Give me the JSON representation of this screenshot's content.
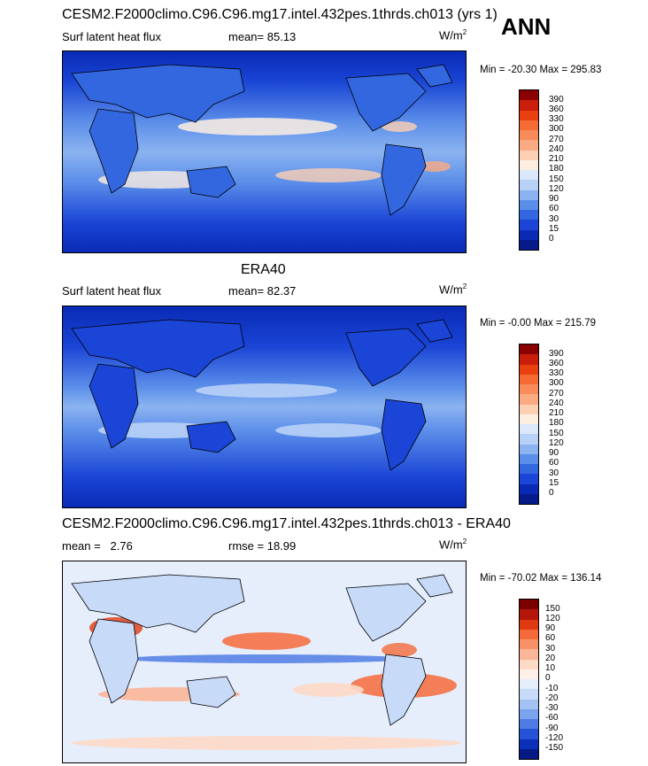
{
  "season": "ANN",
  "panels": [
    {
      "title": "CESM2.F2000climo.C96.C96.mg17.intel.432pes.1thrds.ch013 (yrs 1)",
      "left_label": "Surf latent heat flux",
      "stat_label": "mean=",
      "stat_value": "85.13",
      "units_base": "W/m",
      "units_exp": "2",
      "min_max": "Min = -20.30 Max = 295.83",
      "colorbar_ticks": [
        "390",
        "360",
        "330",
        "300",
        "270",
        "240",
        "210",
        "180",
        "150",
        "120",
        "90",
        "60",
        "30",
        "15",
        "0"
      ],
      "colorbar_colors": [
        "#8b0000",
        "#c81e0a",
        "#e8400f",
        "#f66a33",
        "#f98a5a",
        "#fbab82",
        "#fdd0b4",
        "#fdeee2",
        "#dbe8fb",
        "#b8d1f7",
        "#8bb3f1",
        "#5b8ee9",
        "#3267e0",
        "#1a45d6",
        "#0a2ab5",
        "#071a8a"
      ]
    },
    {
      "title": "ERA40",
      "left_label": "Surf latent heat flux",
      "stat_label": "mean=",
      "stat_value": "82.37",
      "units_base": "W/m",
      "units_exp": "2",
      "min_max": "Min =  -0.00 Max = 215.79",
      "colorbar_ticks": [
        "390",
        "360",
        "330",
        "300",
        "270",
        "240",
        "210",
        "180",
        "150",
        "120",
        "90",
        "60",
        "30",
        "15",
        "0"
      ],
      "colorbar_colors": [
        "#8b0000",
        "#c81e0a",
        "#e8400f",
        "#f66a33",
        "#f98a5a",
        "#fbab82",
        "#fdd0b4",
        "#fdeee2",
        "#dbe8fb",
        "#b8d1f7",
        "#8bb3f1",
        "#5b8ee9",
        "#3267e0",
        "#1a45d6",
        "#0a2ab5",
        "#071a8a"
      ]
    },
    {
      "title": "CESM2.F2000climo.C96.C96.mg17.intel.432pes.1thrds.ch013 - ERA40",
      "left_label": "mean =   2.76",
      "stat_label": "rmse =",
      "stat_value": "18.99",
      "units_base": "W/m",
      "units_exp": "2",
      "min_max": "Min = -70.02 Max = 136.14",
      "colorbar_ticks": [
        "150",
        "120",
        "90",
        "60",
        "30",
        "20",
        "10",
        "0",
        "-10",
        "-20",
        "-30",
        "-60",
        "-90",
        "-120",
        "-150"
      ],
      "colorbar_colors": [
        "#7a0000",
        "#b5160a",
        "#e03a12",
        "#f46a3a",
        "#f89068",
        "#fbb597",
        "#fdd9c6",
        "#fdf0e8",
        "#e6eefc",
        "#c7daf8",
        "#a3c1f3",
        "#7aa2ed",
        "#4f7ce4",
        "#2553d8",
        "#0a2fb8",
        "#061a85"
      ]
    }
  ]
}
